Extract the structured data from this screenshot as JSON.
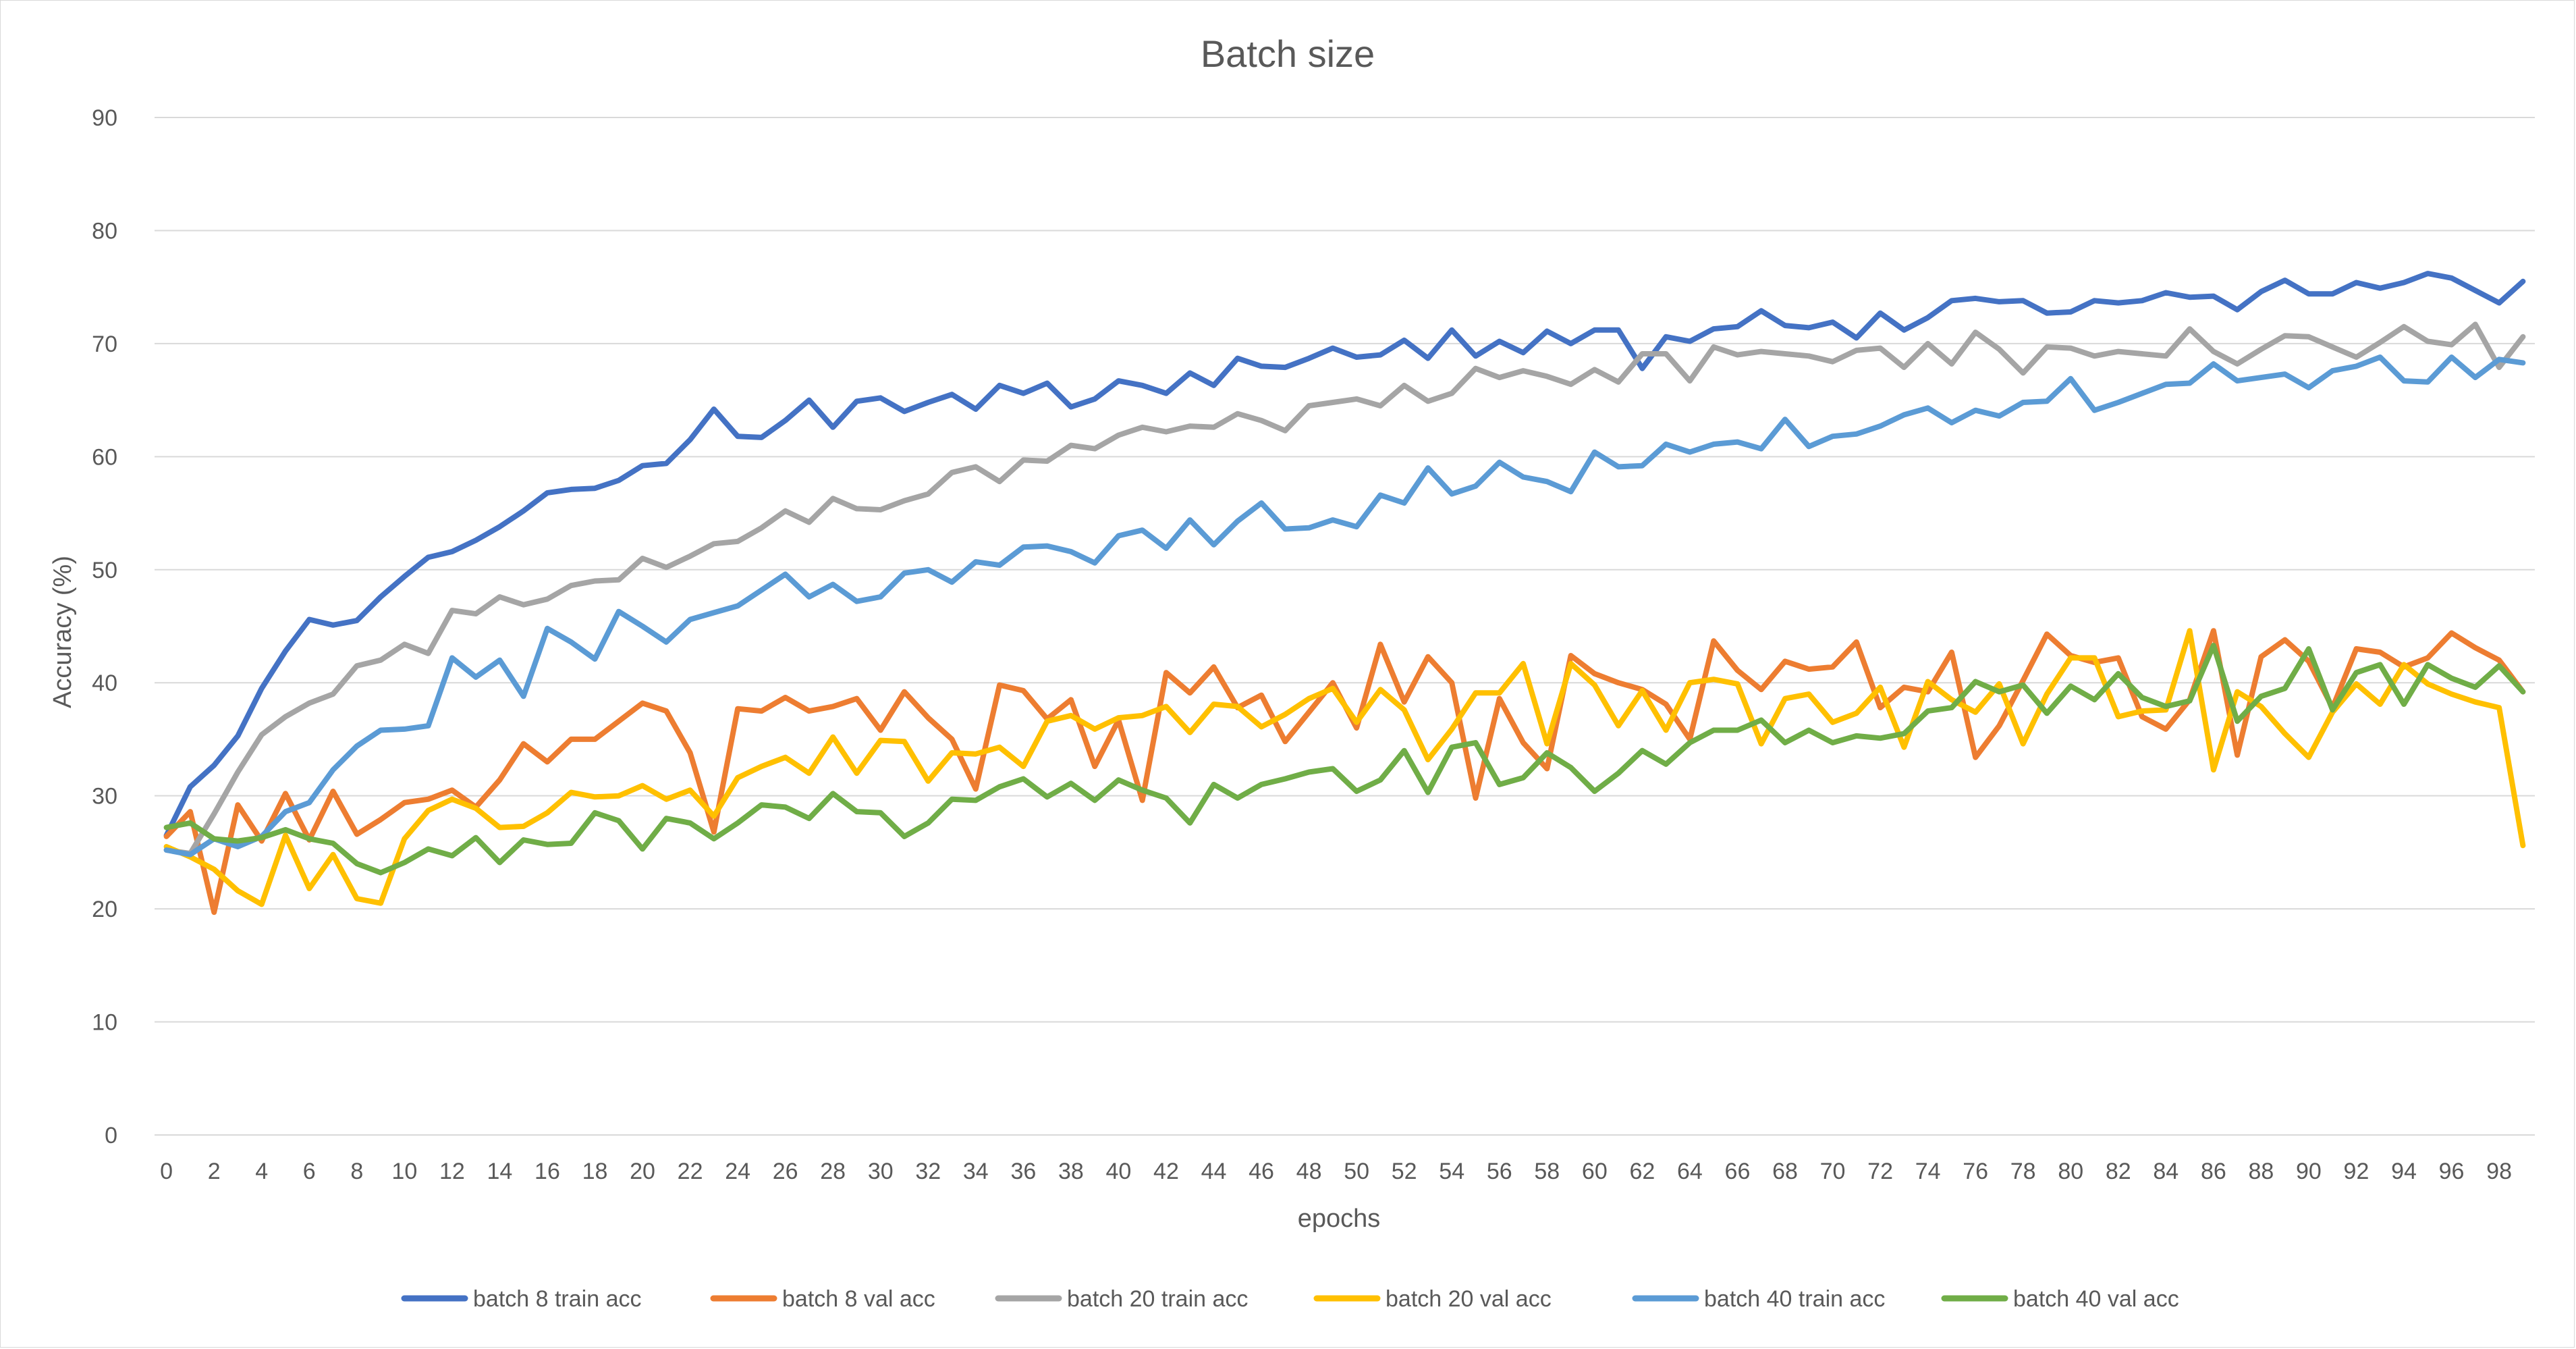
{
  "chart_data": {
    "type": "line",
    "title": "Batch size",
    "xlabel": "epochs",
    "ylabel": "Accuracy (%)",
    "xlim": [
      0,
      99
    ],
    "ylim": [
      0,
      90
    ],
    "yticks": [
      0,
      10,
      20,
      30,
      40,
      50,
      60,
      70,
      80,
      90
    ],
    "xticks": [
      0,
      2,
      4,
      6,
      8,
      10,
      12,
      14,
      16,
      18,
      20,
      22,
      24,
      26,
      28,
      30,
      32,
      34,
      36,
      38,
      40,
      42,
      44,
      46,
      48,
      50,
      52,
      54,
      56,
      58,
      60,
      62,
      64,
      66,
      68,
      70,
      72,
      74,
      76,
      78,
      80,
      82,
      84,
      86,
      88,
      90,
      92,
      94,
      96,
      98
    ],
    "grid": "horizontal",
    "legend_position": "bottom",
    "series": [
      {
        "name": "batch 8 train acc",
        "color": "#4472C4",
        "values": [
          26.5,
          30.8,
          32.7,
          35.3,
          39.5,
          42.8,
          45.6,
          45.1,
          45.5,
          47.6,
          49.4,
          51.1,
          51.6,
          52.6,
          53.8,
          55.2,
          56.8,
          57.1,
          57.2,
          57.9,
          59.2,
          59.4,
          61.5,
          64.2,
          61.8,
          61.7,
          63.2,
          65.0,
          62.6,
          64.9,
          65.2,
          64.0,
          64.8,
          65.5,
          64.2,
          66.3,
          65.6,
          66.5,
          64.4,
          65.1,
          66.7,
          66.3,
          65.6,
          67.4,
          66.3,
          68.7,
          68.0,
          67.9,
          68.7,
          69.6,
          68.8,
          69.0,
          70.3,
          68.7,
          71.2,
          68.9,
          70.2,
          69.2,
          71.1,
          70.0,
          71.2,
          71.2,
          67.8,
          70.6,
          70.2,
          71.3,
          71.5,
          72.9,
          71.6,
          71.4,
          71.9,
          70.5,
          72.7,
          71.2,
          72.3,
          73.8,
          74.0,
          73.7,
          73.8,
          72.7,
          72.8,
          73.8,
          73.6,
          73.8,
          74.5,
          74.1,
          74.2,
          73.0,
          74.6,
          75.6,
          74.4,
          74.4,
          75.4,
          74.9,
          75.4,
          76.2,
          75.8,
          74.7,
          73.6,
          75.5
        ]
      },
      {
        "name": "batch 8 val acc",
        "color": "#ED7D31",
        "values": [
          26.4,
          28.6,
          19.7,
          29.2,
          26.0,
          30.2,
          26.1,
          30.4,
          26.6,
          27.9,
          29.4,
          29.7,
          30.5,
          29.0,
          31.4,
          34.6,
          33.0,
          35.0,
          35.0,
          36.6,
          38.2,
          37.5,
          33.8,
          26.8,
          37.7,
          37.5,
          38.7,
          37.5,
          37.9,
          38.6,
          35.8,
          39.2,
          36.9,
          35.0,
          30.6,
          39.8,
          39.3,
          36.8,
          38.5,
          32.6,
          36.7,
          29.6,
          40.9,
          39.1,
          41.4,
          37.8,
          38.9,
          34.8,
          37.4,
          40.0,
          36.0,
          43.4,
          38.3,
          42.3,
          40.0,
          29.8,
          38.6,
          34.7,
          32.4,
          42.4,
          40.8,
          40.0,
          39.4,
          38.1,
          35.0,
          43.7,
          41.1,
          39.4,
          41.9,
          41.2,
          41.4,
          43.6,
          37.8,
          39.6,
          39.2,
          42.7,
          33.4,
          36.2,
          40.2,
          44.3,
          42.4,
          41.8,
          42.2,
          37.0,
          35.9,
          38.5,
          44.6,
          33.6,
          42.3,
          43.8,
          41.9,
          37.8,
          43.0,
          42.7,
          41.4,
          42.2,
          44.4,
          43.1,
          42.0,
          39.2
        ]
      },
      {
        "name": "batch 20 train acc",
        "color": "#A5A5A5",
        "values": [
          25.2,
          24.9,
          28.4,
          32.1,
          35.4,
          37.0,
          38.2,
          39.0,
          41.5,
          42.0,
          43.4,
          42.6,
          46.4,
          46.1,
          47.6,
          46.9,
          47.4,
          48.6,
          49.0,
          49.1,
          51.0,
          50.2,
          51.2,
          52.3,
          52.5,
          53.7,
          55.2,
          54.2,
          56.3,
          55.4,
          55.3,
          56.1,
          56.7,
          58.6,
          59.1,
          57.8,
          59.7,
          59.6,
          61.0,
          60.7,
          61.9,
          62.6,
          62.2,
          62.7,
          62.6,
          63.8,
          63.2,
          62.3,
          64.5,
          64.8,
          65.1,
          64.5,
          66.3,
          64.9,
          65.6,
          67.8,
          67.0,
          67.6,
          67.1,
          66.4,
          67.7,
          66.6,
          69.1,
          69.1,
          66.7,
          69.7,
          69.0,
          69.3,
          69.1,
          68.9,
          68.4,
          69.4,
          69.6,
          67.9,
          70.0,
          68.2,
          71.0,
          69.5,
          67.4,
          69.7,
          69.6,
          68.9,
          69.3,
          69.1,
          68.9,
          71.3,
          69.3,
          68.2,
          69.5,
          70.7,
          70.6,
          69.7,
          68.8,
          70.1,
          71.5,
          70.2,
          69.9,
          71.7,
          67.9,
          70.6
        ]
      },
      {
        "name": "batch 20 val acc",
        "color": "#FFC000",
        "values": [
          25.5,
          24.6,
          23.5,
          21.6,
          20.4,
          26.5,
          21.8,
          24.8,
          20.9,
          20.5,
          26.2,
          28.7,
          29.7,
          28.9,
          27.2,
          27.3,
          28.5,
          30.3,
          29.9,
          30.0,
          30.9,
          29.7,
          30.5,
          28.2,
          31.6,
          32.6,
          33.4,
          32.0,
          35.2,
          32.0,
          34.9,
          34.8,
          31.3,
          33.8,
          33.7,
          34.3,
          32.6,
          36.6,
          37.1,
          35.9,
          36.9,
          37.1,
          37.9,
          35.6,
          38.1,
          37.9,
          36.1,
          37.2,
          38.6,
          39.5,
          36.5,
          39.4,
          37.6,
          33.2,
          35.9,
          39.1,
          39.1,
          41.7,
          34.6,
          41.7,
          39.8,
          36.2,
          39.3,
          35.8,
          40.0,
          40.3,
          39.9,
          34.6,
          38.6,
          39.0,
          36.5,
          37.3,
          39.6,
          34.3,
          40.1,
          38.5,
          37.4,
          39.9,
          34.6,
          39.0,
          42.2,
          42.2,
          37.0,
          37.5,
          37.6,
          44.6,
          32.3,
          39.2,
          37.9,
          35.5,
          33.4,
          37.4,
          39.9,
          38.1,
          41.6,
          39.9,
          39.0,
          38.3,
          37.8,
          25.6
        ]
      },
      {
        "name": "batch 40 train acc",
        "color": "#5B9BD5",
        "values": [
          25.2,
          24.8,
          26.2,
          25.5,
          26.4,
          28.6,
          29.4,
          32.3,
          34.4,
          35.8,
          35.9,
          36.2,
          42.2,
          40.5,
          42.0,
          38.8,
          44.8,
          43.6,
          42.1,
          46.3,
          45.0,
          43.6,
          45.6,
          46.2,
          46.8,
          48.2,
          49.6,
          47.6,
          48.7,
          47.2,
          47.6,
          49.7,
          50.0,
          48.9,
          50.7,
          50.4,
          52.0,
          52.1,
          51.6,
          50.6,
          53.0,
          53.5,
          51.9,
          54.4,
          52.2,
          54.3,
          55.9,
          53.6,
          53.7,
          54.4,
          53.8,
          56.6,
          55.9,
          59.0,
          56.7,
          57.4,
          59.5,
          58.2,
          57.8,
          56.9,
          60.4,
          59.1,
          59.2,
          61.1,
          60.4,
          61.1,
          61.3,
          60.7,
          63.3,
          60.9,
          61.8,
          62.0,
          62.7,
          63.7,
          64.3,
          63.0,
          64.1,
          63.6,
          64.8,
          64.9,
          66.9,
          64.1,
          64.8,
          65.6,
          66.4,
          66.5,
          68.2,
          66.7,
          67.0,
          67.3,
          66.1,
          67.6,
          68.0,
          68.8,
          66.7,
          66.6,
          68.8,
          67.0,
          68.6,
          68.3
        ]
      },
      {
        "name": "batch 40 val acc",
        "color": "#70AD47",
        "values": [
          27.2,
          27.6,
          26.2,
          26.0,
          26.3,
          27.0,
          26.2,
          25.8,
          24.0,
          23.2,
          24.1,
          25.3,
          24.7,
          26.3,
          24.1,
          26.1,
          25.7,
          25.8,
          28.5,
          27.8,
          25.3,
          28.0,
          27.6,
          26.2,
          27.6,
          29.2,
          29.0,
          28.0,
          30.2,
          28.6,
          28.5,
          26.4,
          27.6,
          29.7,
          29.6,
          30.8,
          31.5,
          29.9,
          31.1,
          29.6,
          31.4,
          30.5,
          29.8,
          27.6,
          31.0,
          29.8,
          31.0,
          31.5,
          32.1,
          32.4,
          30.4,
          31.4,
          34.0,
          30.3,
          34.3,
          34.7,
          31.0,
          31.6,
          33.8,
          32.5,
          30.4,
          32.0,
          34.0,
          32.8,
          34.7,
          35.8,
          35.8,
          36.7,
          34.7,
          35.8,
          34.7,
          35.3,
          35.1,
          35.5,
          37.5,
          37.8,
          40.1,
          39.2,
          39.8,
          37.3,
          39.7,
          38.5,
          40.8,
          38.7,
          37.9,
          38.4,
          43.3,
          36.6,
          38.8,
          39.5,
          43.0,
          37.6,
          40.9,
          41.6,
          38.1,
          41.6,
          40.4,
          39.6,
          41.5,
          39.2
        ]
      }
    ]
  }
}
